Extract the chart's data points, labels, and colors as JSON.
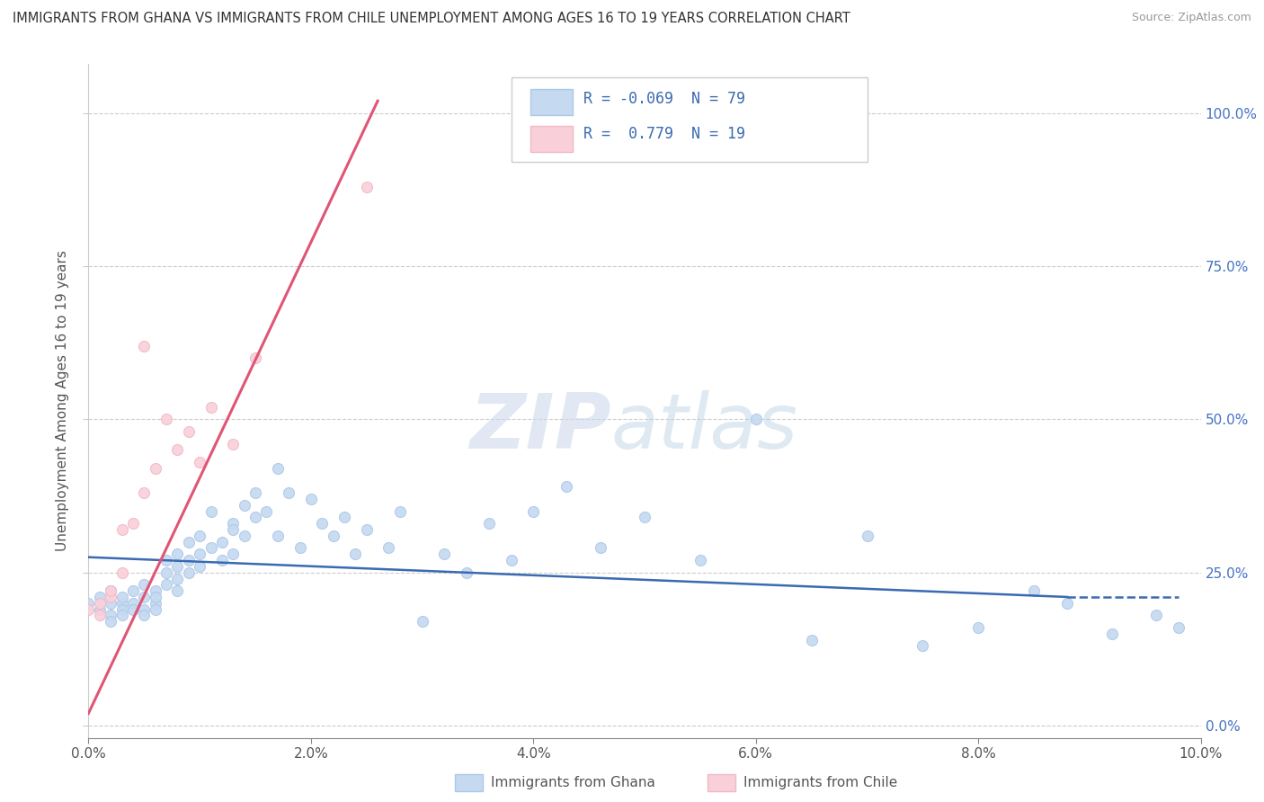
{
  "title": "IMMIGRANTS FROM GHANA VS IMMIGRANTS FROM CHILE UNEMPLOYMENT AMONG AGES 16 TO 19 YEARS CORRELATION CHART",
  "source": "Source: ZipAtlas.com",
  "ylabel": "Unemployment Among Ages 16 to 19 years",
  "legend_label1": "Immigrants from Ghana",
  "legend_label2": "Immigrants from Chile",
  "R1": "-0.069",
  "N1": "79",
  "R2": "0.779",
  "N2": "19",
  "xmin": 0.0,
  "xmax": 0.1,
  "ymin": -0.02,
  "ymax": 1.08,
  "yticks": [
    0.0,
    0.25,
    0.5,
    0.75,
    1.0
  ],
  "ytick_labels": [
    "0.0%",
    "25.0%",
    "50.0%",
    "75.0%",
    "100.0%"
  ],
  "xticks": [
    0.0,
    0.02,
    0.04,
    0.06,
    0.08,
    0.1
  ],
  "xtick_labels": [
    "0.0%",
    "2.0%",
    "4.0%",
    "6.0%",
    "8.0%",
    "10.0%"
  ],
  "color_ghana": "#adc8e8",
  "color_chile": "#f2b8c6",
  "color_ghana_fill": "#c5d9f0",
  "color_chile_fill": "#f9d0da",
  "color_ghana_line": "#3a6ab0",
  "color_chile_line": "#e05575",
  "color_ghana_trend": "#3a6ab0",
  "color_chile_trend": "#e05575",
  "watermark": "ZIPatlas",
  "ghana_x": [
    0.0,
    0.001,
    0.001,
    0.002,
    0.002,
    0.002,
    0.002,
    0.003,
    0.003,
    0.003,
    0.003,
    0.004,
    0.004,
    0.004,
    0.005,
    0.005,
    0.005,
    0.005,
    0.006,
    0.006,
    0.006,
    0.006,
    0.007,
    0.007,
    0.007,
    0.008,
    0.008,
    0.008,
    0.008,
    0.009,
    0.009,
    0.009,
    0.01,
    0.01,
    0.01,
    0.011,
    0.011,
    0.012,
    0.012,
    0.013,
    0.013,
    0.013,
    0.014,
    0.014,
    0.015,
    0.015,
    0.016,
    0.017,
    0.017,
    0.018,
    0.019,
    0.02,
    0.021,
    0.022,
    0.023,
    0.024,
    0.025,
    0.027,
    0.028,
    0.03,
    0.032,
    0.034,
    0.036,
    0.038,
    0.04,
    0.043,
    0.046,
    0.05,
    0.055,
    0.06,
    0.065,
    0.07,
    0.075,
    0.08,
    0.085,
    0.088,
    0.092,
    0.096,
    0.098
  ],
  "ghana_y": [
    0.2,
    0.19,
    0.21,
    0.18,
    0.2,
    0.22,
    0.17,
    0.2,
    0.19,
    0.21,
    0.18,
    0.22,
    0.2,
    0.19,
    0.21,
    0.19,
    0.23,
    0.18,
    0.22,
    0.2,
    0.21,
    0.19,
    0.25,
    0.23,
    0.27,
    0.26,
    0.24,
    0.28,
    0.22,
    0.3,
    0.27,
    0.25,
    0.28,
    0.31,
    0.26,
    0.29,
    0.35,
    0.3,
    0.27,
    0.33,
    0.28,
    0.32,
    0.36,
    0.31,
    0.34,
    0.38,
    0.35,
    0.42,
    0.31,
    0.38,
    0.29,
    0.37,
    0.33,
    0.31,
    0.34,
    0.28,
    0.32,
    0.29,
    0.35,
    0.17,
    0.28,
    0.25,
    0.33,
    0.27,
    0.35,
    0.39,
    0.29,
    0.34,
    0.27,
    0.5,
    0.14,
    0.31,
    0.13,
    0.16,
    0.22,
    0.2,
    0.15,
    0.18,
    0.16
  ],
  "chile_x": [
    0.0,
    0.001,
    0.001,
    0.002,
    0.002,
    0.003,
    0.003,
    0.004,
    0.005,
    0.005,
    0.006,
    0.007,
    0.008,
    0.009,
    0.01,
    0.011,
    0.013,
    0.015,
    0.025
  ],
  "chile_y": [
    0.19,
    0.2,
    0.18,
    0.21,
    0.22,
    0.25,
    0.32,
    0.33,
    0.38,
    0.62,
    0.42,
    0.5,
    0.45,
    0.48,
    0.43,
    0.52,
    0.46,
    0.6,
    0.88
  ],
  "ghana_trend_x": [
    0.0,
    0.088,
    0.098
  ],
  "ghana_trend_y": [
    0.275,
    0.21,
    0.21
  ],
  "ghana_trend_style": [
    "solid",
    "dashed"
  ],
  "ghana_trend_break": 0.088,
  "chile_trend_x": [
    0.0,
    0.026
  ],
  "chile_trend_y": [
    0.02,
    1.02
  ]
}
